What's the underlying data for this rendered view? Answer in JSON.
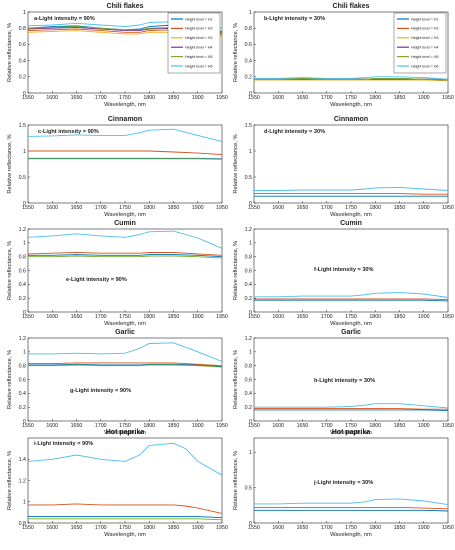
{
  "figure": {
    "colors": [
      "#0072BD",
      "#D95319",
      "#EDB120",
      "#7E2F8E",
      "#77AC30",
      "#4DBEEE"
    ],
    "legend_entries": [
      "Height level = H1",
      "Height level = H2",
      "Height level = H3",
      "Height level = H4",
      "Height level = H5",
      "Height level = H6"
    ]
  },
  "chart_data": [
    {
      "type": "line",
      "title": "Chili flakes",
      "label": "a-Light intensity = 90%",
      "xlabel": "Wavelength, nm",
      "ylabel": "Relative reflectance, %",
      "xlim": [
        1550,
        1950
      ],
      "ylim": [
        0,
        1
      ],
      "legend": "top-right",
      "xticks": [
        "1550",
        "1600",
        "1650",
        "1700",
        "1750",
        "1800",
        "1850",
        "1900",
        "1950"
      ],
      "yticks": [
        "0",
        "0.2",
        "0.4",
        "0.6",
        "0.8",
        "1"
      ],
      "x": [
        1550,
        1600,
        1650,
        1700,
        1750,
        1780,
        1800,
        1850,
        1900,
        1950
      ],
      "series": [
        {
          "name": "Height level = H1",
          "values": [
            0.8,
            0.82,
            0.83,
            0.8,
            0.78,
            0.79,
            0.82,
            0.84,
            0.8,
            0.76
          ]
        },
        {
          "name": "Height level = H2",
          "values": [
            0.77,
            0.78,
            0.79,
            0.77,
            0.75,
            0.75,
            0.77,
            0.78,
            0.75,
            0.72
          ]
        },
        {
          "name": "Height level = H3",
          "values": [
            0.75,
            0.76,
            0.77,
            0.75,
            0.73,
            0.73,
            0.75,
            0.75,
            0.73,
            0.7
          ]
        },
        {
          "name": "Height level = H4",
          "values": [
            0.79,
            0.8,
            0.81,
            0.79,
            0.77,
            0.77,
            0.79,
            0.8,
            0.77,
            0.74
          ]
        },
        {
          "name": "Height level = H5",
          "values": [
            0.8,
            0.81,
            0.82,
            0.8,
            0.78,
            0.78,
            0.8,
            0.81,
            0.78,
            0.75
          ]
        },
        {
          "name": "Height level = H6",
          "values": [
            0.83,
            0.84,
            0.86,
            0.84,
            0.82,
            0.84,
            0.87,
            0.88,
            0.85,
            0.8
          ]
        }
      ]
    },
    {
      "type": "line",
      "title": "Chili flakes",
      "label": "b-Light intensity = 30%",
      "xlabel": "Wavelength, nm",
      "ylabel": "Relative reflectance, %",
      "xlim": [
        1550,
        1950
      ],
      "ylim": [
        0,
        1
      ],
      "legend": "top-right",
      "xticks": [
        "1550",
        "1600",
        "1650",
        "1700",
        "1750",
        "1800",
        "1850",
        "1900",
        "1950"
      ],
      "yticks": [
        "0",
        "0.2",
        "0.4",
        "0.6",
        "0.8",
        "1"
      ],
      "x": [
        1550,
        1600,
        1650,
        1700,
        1750,
        1780,
        1800,
        1850,
        1900,
        1950
      ],
      "series": [
        {
          "name": "Height level = H1",
          "values": [
            0.17,
            0.17,
            0.18,
            0.17,
            0.17,
            0.17,
            0.18,
            0.18,
            0.17,
            0.17
          ]
        },
        {
          "name": "Height level = H2",
          "values": [
            0.16,
            0.16,
            0.17,
            0.16,
            0.16,
            0.16,
            0.17,
            0.17,
            0.16,
            0.16
          ]
        },
        {
          "name": "Height level = H3",
          "values": [
            0.16,
            0.16,
            0.16,
            0.16,
            0.16,
            0.16,
            0.16,
            0.16,
            0.16,
            0.15
          ]
        },
        {
          "name": "Height level = H4",
          "values": [
            0.17,
            0.17,
            0.17,
            0.17,
            0.17,
            0.17,
            0.17,
            0.17,
            0.17,
            0.16
          ]
        },
        {
          "name": "Height level = H5",
          "values": [
            0.17,
            0.17,
            0.18,
            0.17,
            0.17,
            0.17,
            0.18,
            0.18,
            0.17,
            0.16
          ]
        },
        {
          "name": "Height level = H6",
          "values": [
            0.18,
            0.18,
            0.19,
            0.18,
            0.18,
            0.19,
            0.2,
            0.2,
            0.19,
            0.17
          ]
        }
      ]
    },
    {
      "type": "line",
      "title": "Cinnamon",
      "label": "c-Light intensity = 90%",
      "xlabel": "Wavelength, nm",
      "ylabel": "Relative reflectance, %",
      "xlim": [
        1550,
        1950
      ],
      "ylim": [
        0,
        1.5
      ],
      "xticks": [
        "1550",
        "1600",
        "1650",
        "1700",
        "1750",
        "1800",
        "1850",
        "1900",
        "1950"
      ],
      "yticks": [
        "0",
        "0.5",
        "1",
        "1.5"
      ],
      "x": [
        1550,
        1600,
        1650,
        1700,
        1750,
        1780,
        1800,
        1850,
        1900,
        1950
      ],
      "series": [
        {
          "name": "Height level = H1",
          "values": [
            0.86,
            0.86,
            0.86,
            0.86,
            0.86,
            0.86,
            0.86,
            0.86,
            0.86,
            0.85
          ]
        },
        {
          "name": "Height level = H2",
          "values": [
            1.0,
            1.0,
            1.0,
            1.0,
            1.0,
            1.0,
            1.0,
            0.98,
            0.96,
            0.93
          ]
        },
        {
          "name": "Height level = H5",
          "values": [
            0.85,
            0.85,
            0.85,
            0.85,
            0.85,
            0.85,
            0.85,
            0.85,
            0.85,
            0.84
          ]
        },
        {
          "name": "Height level = H6",
          "values": [
            1.28,
            1.29,
            1.31,
            1.3,
            1.3,
            1.35,
            1.4,
            1.42,
            1.3,
            1.18
          ]
        }
      ]
    },
    {
      "type": "line",
      "title": "Cinnamon",
      "label": "d-Light intensity = 30%",
      "xlabel": "Wavelength, nm",
      "ylabel": "Relative reflectance, %",
      "xlim": [
        1550,
        1950
      ],
      "ylim": [
        0,
        1.5
      ],
      "xticks": [
        "1550",
        "1600",
        "1650",
        "1700",
        "1750",
        "1800",
        "1850",
        "1900",
        "1950"
      ],
      "yticks": [
        "0",
        "0.5",
        "1",
        "1.5"
      ],
      "x": [
        1550,
        1600,
        1650,
        1700,
        1750,
        1780,
        1800,
        1850,
        1900,
        1950
      ],
      "series": [
        {
          "name": "Height level = H1",
          "values": [
            0.13,
            0.13,
            0.13,
            0.13,
            0.13,
            0.13,
            0.13,
            0.13,
            0.13,
            0.13
          ]
        },
        {
          "name": "Height level = H2",
          "values": [
            0.18,
            0.18,
            0.18,
            0.18,
            0.18,
            0.18,
            0.18,
            0.18,
            0.17,
            0.17
          ]
        },
        {
          "name": "Height level = H6",
          "values": [
            0.24,
            0.24,
            0.25,
            0.25,
            0.25,
            0.27,
            0.29,
            0.3,
            0.27,
            0.24
          ]
        }
      ]
    },
    {
      "type": "line",
      "title": "Cumin",
      "label": "e-Light intensity = 90%",
      "xlabel": "Wavelength, nm",
      "ylabel": "Relative reflectance, %",
      "xlim": [
        1550,
        1950
      ],
      "ylim": [
        0,
        1.2
      ],
      "xticks": [
        "1550",
        "1600",
        "1650",
        "1700",
        "1750",
        "1800",
        "1850",
        "1900",
        "1950"
      ],
      "yticks": [
        "0",
        "0.2",
        "0.4",
        "0.6",
        "0.8",
        "1",
        "1.2"
      ],
      "x": [
        1550,
        1600,
        1650,
        1700,
        1750,
        1780,
        1800,
        1850,
        1900,
        1950
      ],
      "series": [
        {
          "name": "Height level = H1",
          "values": [
            0.82,
            0.82,
            0.83,
            0.82,
            0.82,
            0.82,
            0.83,
            0.83,
            0.82,
            0.8
          ]
        },
        {
          "name": "Height level = H2",
          "values": [
            0.84,
            0.85,
            0.86,
            0.85,
            0.85,
            0.85,
            0.86,
            0.86,
            0.84,
            0.82
          ]
        },
        {
          "name": "Height level = H5",
          "values": [
            0.8,
            0.8,
            0.81,
            0.8,
            0.8,
            0.8,
            0.81,
            0.81,
            0.8,
            0.78
          ]
        },
        {
          "name": "Height level = H6",
          "values": [
            1.08,
            1.1,
            1.13,
            1.1,
            1.08,
            1.12,
            1.16,
            1.17,
            1.07,
            0.92
          ]
        }
      ]
    },
    {
      "type": "line",
      "title": "Cumin",
      "label": "f-Light intensity = 30%",
      "xlabel": "Wavelength, nm",
      "ylabel": "Relative reflectance, %",
      "xlim": [
        1550,
        1950
      ],
      "ylim": [
        0,
        1.2
      ],
      "xticks": [
        "1550",
        "1600",
        "1650",
        "1700",
        "1750",
        "1800",
        "1850",
        "1900",
        "1950"
      ],
      "yticks": [
        "0",
        "0.2",
        "0.4",
        "0.6",
        "0.8",
        "1",
        "1.2"
      ],
      "x": [
        1550,
        1600,
        1650,
        1700,
        1750,
        1780,
        1800,
        1850,
        1900,
        1950
      ],
      "series": [
        {
          "name": "Height level = H1",
          "values": [
            0.17,
            0.17,
            0.17,
            0.17,
            0.17,
            0.17,
            0.17,
            0.17,
            0.17,
            0.16
          ]
        },
        {
          "name": "Height level = H2",
          "values": [
            0.19,
            0.19,
            0.19,
            0.19,
            0.19,
            0.19,
            0.19,
            0.19,
            0.19,
            0.18
          ]
        },
        {
          "name": "Height level = H6",
          "values": [
            0.22,
            0.22,
            0.23,
            0.23,
            0.23,
            0.25,
            0.27,
            0.28,
            0.26,
            0.21
          ]
        }
      ]
    },
    {
      "type": "line",
      "title": "Garlic",
      "label": "g-Light intensity = 90%",
      "xlabel": "Wavelength, nm",
      "ylabel": "Relative reflectance, %",
      "xlim": [
        1550,
        1950
      ],
      "ylim": [
        0,
        1.2
      ],
      "xticks": [
        "1550",
        "1600",
        "1650",
        "1700",
        "1750",
        "1800",
        "1850",
        "1900",
        "1950"
      ],
      "yticks": [
        "0",
        "0.2",
        "0.4",
        "0.6",
        "0.8",
        "1",
        "1.2"
      ],
      "x": [
        1550,
        1600,
        1650,
        1700,
        1750,
        1780,
        1800,
        1850,
        1900,
        1950
      ],
      "series": [
        {
          "name": "Height level = H1",
          "values": [
            0.81,
            0.81,
            0.82,
            0.81,
            0.81,
            0.81,
            0.82,
            0.82,
            0.81,
            0.79
          ]
        },
        {
          "name": "Height level = H2",
          "values": [
            0.83,
            0.83,
            0.84,
            0.84,
            0.84,
            0.84,
            0.84,
            0.84,
            0.82,
            0.8
          ]
        },
        {
          "name": "Height level = H5",
          "values": [
            0.8,
            0.8,
            0.81,
            0.8,
            0.8,
            0.8,
            0.81,
            0.81,
            0.8,
            0.78
          ]
        },
        {
          "name": "Height level = H6",
          "values": [
            0.97,
            0.97,
            0.98,
            0.97,
            0.98,
            1.05,
            1.12,
            1.13,
            1.0,
            0.86
          ]
        }
      ]
    },
    {
      "type": "line",
      "title": "Garlic",
      "label": "h-Light intensity = 30%",
      "xlabel": "Wavelength, nm",
      "ylabel": "Relative reflectance, %",
      "xlim": [
        1550,
        1950
      ],
      "ylim": [
        0,
        1.2
      ],
      "xticks": [
        "1550",
        "1600",
        "1650",
        "1700",
        "1750",
        "1800",
        "1850",
        "1900",
        "1950"
      ],
      "yticks": [
        "0",
        "0.2",
        "0.4",
        "0.6",
        "0.8",
        "1",
        "1.2"
      ],
      "x": [
        1550,
        1600,
        1650,
        1700,
        1750,
        1780,
        1800,
        1850,
        1900,
        1950
      ],
      "series": [
        {
          "name": "Height level = H1",
          "values": [
            0.16,
            0.16,
            0.16,
            0.16,
            0.16,
            0.16,
            0.16,
            0.16,
            0.16,
            0.15
          ]
        },
        {
          "name": "Height level = H2",
          "values": [
            0.18,
            0.18,
            0.18,
            0.18,
            0.18,
            0.18,
            0.18,
            0.18,
            0.17,
            0.17
          ]
        },
        {
          "name": "Height level = H6",
          "values": [
            0.2,
            0.2,
            0.2,
            0.2,
            0.21,
            0.23,
            0.25,
            0.25,
            0.22,
            0.19
          ]
        }
      ]
    },
    {
      "type": "line",
      "title": "Hot paprika",
      "label": "i-Light intensity = 90%",
      "xlabel": "Wavelength, nm",
      "ylabel": "Relative reflectance, %",
      "xlim": [
        1550,
        1950
      ],
      "ylim": [
        0.8,
        1.6
      ],
      "xticks": [
        "1550",
        "1600",
        "1650",
        "1700",
        "1750",
        "1800",
        "1850",
        "1900",
        "1950"
      ],
      "yticks": [
        "0.8",
        "1",
        "1.2",
        "1.4"
      ],
      "x": [
        1550,
        1600,
        1650,
        1700,
        1750,
        1780,
        1800,
        1850,
        1875,
        1900,
        1950
      ],
      "series": [
        {
          "name": "Height level = H1",
          "values": [
            0.86,
            0.86,
            0.86,
            0.86,
            0.86,
            0.86,
            0.86,
            0.86,
            0.86,
            0.86,
            0.85
          ]
        },
        {
          "name": "Height level = H2",
          "values": [
            0.97,
            0.97,
            0.98,
            0.97,
            0.97,
            0.97,
            0.97,
            0.97,
            0.96,
            0.94,
            0.89
          ]
        },
        {
          "name": "Height level = H5",
          "values": [
            0.84,
            0.84,
            0.84,
            0.84,
            0.84,
            0.84,
            0.84,
            0.84,
            0.84,
            0.84,
            0.83
          ]
        },
        {
          "name": "Height level = H6",
          "values": [
            1.38,
            1.4,
            1.44,
            1.4,
            1.38,
            1.44,
            1.53,
            1.55,
            1.5,
            1.38,
            1.25
          ]
        }
      ]
    },
    {
      "type": "line",
      "title": "Hot paprika",
      "label": "j-Light intensity = 30%",
      "xlabel": "Wavelength, nm",
      "ylabel": "Relative reflectance, %",
      "xlim": [
        1550,
        1950
      ],
      "ylim": [
        0,
        1.2
      ],
      "xticks": [
        "1550",
        "1600",
        "1650",
        "1700",
        "1750",
        "1800",
        "1850",
        "1900",
        "1950"
      ],
      "yticks": [
        "0",
        "0.5",
        "1"
      ],
      "x": [
        1550,
        1600,
        1650,
        1700,
        1750,
        1780,
        1800,
        1850,
        1900,
        1950
      ],
      "series": [
        {
          "name": "Height level = H1",
          "values": [
            0.18,
            0.18,
            0.18,
            0.18,
            0.18,
            0.18,
            0.18,
            0.18,
            0.18,
            0.17
          ]
        },
        {
          "name": "Height level = H2",
          "values": [
            0.22,
            0.22,
            0.22,
            0.22,
            0.22,
            0.22,
            0.22,
            0.22,
            0.21,
            0.2
          ]
        },
        {
          "name": "Height level = H6",
          "values": [
            0.27,
            0.27,
            0.28,
            0.28,
            0.28,
            0.3,
            0.33,
            0.34,
            0.31,
            0.26
          ]
        }
      ]
    }
  ]
}
